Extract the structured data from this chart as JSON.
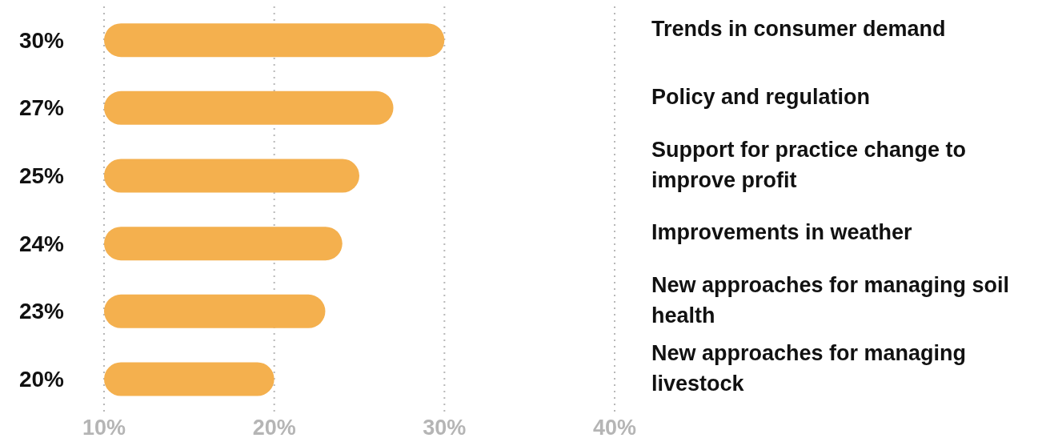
{
  "chart_data": {
    "type": "bar",
    "orientation": "horizontal",
    "categories": [
      "Trends in consumer demand",
      "Policy and regulation",
      "Support for practice change to improve profit",
      "Improvements in weather",
      "New approaches for managing soil health",
      "New approaches for managing livestock"
    ],
    "values": [
      30,
      27,
      25,
      24,
      23,
      20
    ],
    "value_labels": [
      "30%",
      "27%",
      "25%",
      "24%",
      "23%",
      "20%"
    ],
    "color": "#f4b04e",
    "xlim": [
      10,
      40
    ],
    "xticks": [
      {
        "value": 10,
        "label": "10%"
      },
      {
        "value": 20,
        "label": "20%"
      },
      {
        "value": 30,
        "label": "30%"
      },
      {
        "value": 40,
        "label": "40%"
      }
    ],
    "grid": "x"
  }
}
